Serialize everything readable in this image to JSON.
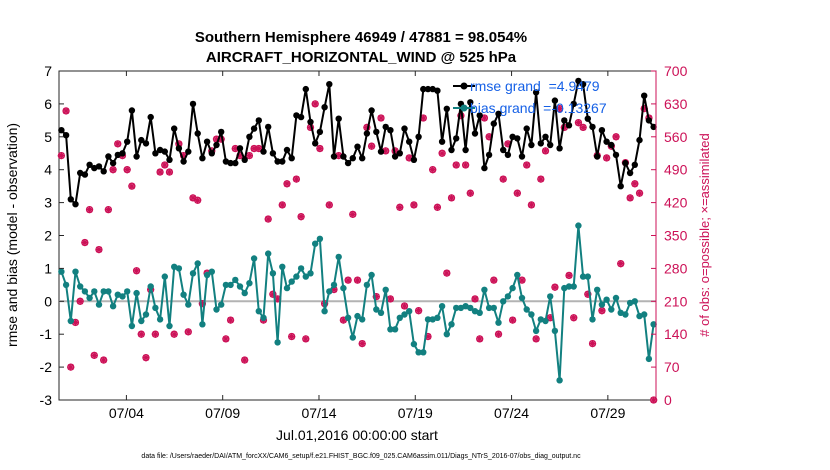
{
  "chart_data": {
    "type": "line",
    "title_line1": "Southern Hemisphere 46949 / 47881 = 98.054%",
    "title_line2": "AIRCRAFT_HORIZONTAL_WIND @ 525 hPa",
    "xlabel": "Jul.01,2016 00:00:00 start",
    "ylabel_left": "rmse and bias (model - observation)",
    "ylabel_right": "# of obs: o=possible; ×=assimilated",
    "footnote": "data file: /Users/raeder/DAI/ATM_forcXX/CAM6_setup/f.e21.FHIST_BGC.f09_025.CAM6assim.011/Diags_NTrS_2016-07/obs_diag_output.nc",
    "x_range_days": [
      0.5,
      31.5
    ],
    "ylim_left": [
      -3,
      7
    ],
    "ylim_right": [
      0,
      700
    ],
    "left_ticks": [
      -3,
      -2,
      -1,
      0,
      1,
      2,
      3,
      4,
      5,
      6,
      7
    ],
    "left_tick_labels": [
      "-3",
      "-2",
      "-1",
      "0",
      "1",
      "2",
      "3",
      "4",
      "5",
      "6",
      "7"
    ],
    "right_ticks": [
      0,
      70,
      140,
      210,
      280,
      350,
      420,
      490,
      560,
      630,
      700
    ],
    "right_tick_labels": [
      "0",
      "70",
      "140",
      "210",
      "280",
      "350",
      "420",
      "490",
      "560",
      "630",
      "700"
    ],
    "x_ticks_days": [
      4,
      9,
      14,
      19,
      24,
      29
    ],
    "x_tick_labels": [
      "07/04",
      "07/09",
      "07/14",
      "07/19",
      "07/24",
      "07/29"
    ],
    "legend": {
      "position": "top-right",
      "rmse_label": "rmse grand  =4.9479",
      "bias_label": "bias grand  =-0.13267"
    },
    "series": [
      {
        "name": "rmse",
        "color": "#000000",
        "values": [
          5.2,
          5.05,
          3.1,
          2.95,
          3.9,
          3.85,
          4.15,
          4.05,
          4.1,
          3.95,
          4.4,
          4.2,
          4.45,
          4.5,
          4.85,
          5.8,
          4.4,
          4.9,
          4.8,
          5.6,
          4.5,
          4.6,
          4.55,
          4.3,
          5.25,
          4.65,
          4.25,
          4.55,
          6.0,
          5.1,
          4.35,
          4.85,
          4.5,
          4.75,
          5.15,
          4.25,
          4.2,
          4.2,
          4.65,
          4.3,
          5.0,
          5.25,
          5.5,
          4.55,
          5.3,
          4.5,
          4.25,
          4.25,
          4.6,
          4.35,
          5.65,
          5.6,
          6.45,
          5.45,
          4.8,
          5.15,
          5.9,
          6.6,
          4.4,
          5.55,
          4.4,
          4.2,
          4.35,
          4.7,
          4.35,
          5.1,
          5.8,
          5.15,
          4.55,
          5.3,
          5.2,
          4.4,
          4.5,
          5.25,
          4.85,
          4.3,
          5.0,
          6.45,
          6.45,
          6.45,
          6.4,
          4.85,
          5.85,
          4.6,
          4.95,
          6.0,
          4.6,
          6.05,
          5.1,
          5.65,
          4.05,
          4.45,
          5.4,
          5.7,
          4.6,
          4.45,
          5.0,
          4.95,
          4.4,
          5.25,
          4.75,
          6.35,
          4.8,
          5.0,
          4.75,
          6.1,
          4.65,
          5.5,
          5.35,
          6.0,
          6.7,
          6.6,
          5.55,
          5.3,
          4.4,
          5.2,
          4.85,
          4.75,
          4.45,
          3.5,
          4.2,
          3.9,
          4.15,
          4.9,
          6.25,
          5.5,
          5.3
        ],
        "legend_label": "rmse grand  =4.9479"
      },
      {
        "name": "bias",
        "color": "#128080",
        "values": [
          0.9,
          0.5,
          -0.6,
          0.9,
          0.45,
          0.3,
          0.1,
          0.3,
          -0.1,
          0.3,
          0.3,
          -0.15,
          0.2,
          0.15,
          0.3,
          -0.75,
          0.25,
          -0.6,
          -0.4,
          0.45,
          -0.2,
          -0.55,
          0.75,
          -0.75,
          1.05,
          1.0,
          0.2,
          -0.1,
          0.85,
          1.15,
          -0.7,
          0.8,
          0.9,
          -0.25,
          -0.1,
          0.5,
          0.5,
          0.65,
          0.45,
          0.25,
          0.55,
          1.3,
          -0.3,
          -0.5,
          1.45,
          0.85,
          -1.25,
          1.05,
          0.4,
          0.6,
          0.75,
          1.0,
          0.75,
          0.85,
          1.75,
          1.9,
          -0.3,
          0.3,
          0.5,
          1.35,
          0.4,
          -0.5,
          -1.1,
          -0.45,
          -0.55,
          0.5,
          0.8,
          -0.25,
          -0.35,
          0.35,
          -0.85,
          -0.85,
          -0.5,
          -0.4,
          -0.3,
          -1.3,
          -1.55,
          -1.55,
          -0.55,
          -0.55,
          -0.5,
          -0.15,
          -1.0,
          -0.7,
          -0.2,
          -0.2,
          -0.15,
          -0.2,
          -0.3,
          -0.35,
          0.35,
          -0.2,
          -0.2,
          -0.65,
          0.0,
          0.15,
          0.4,
          0.8,
          0.1,
          -0.25,
          -0.4,
          -0.9,
          -0.55,
          -0.6,
          0.15,
          -0.9,
          -2.4,
          0.4,
          0.45,
          0.45,
          2.3,
          0.75,
          0.75,
          -0.55,
          0.35,
          -0.1,
          0.05,
          -0.25,
          0.1,
          -0.35,
          -0.4,
          -0.05,
          0.0,
          -0.45,
          -0.4,
          -1.75,
          -0.7
        ],
        "legend_label": "bias grand  =-0.13267"
      }
    ],
    "obs_counts": {
      "color": "#cc1157",
      "note": "paired markers: possible (o) and assimilated (*), right axis",
      "values": [
        520,
        615,
        70,
        165,
        210,
        335,
        405,
        95,
        320,
        85,
        405,
        490,
        545,
        520,
        490,
        455,
        275,
        140,
        90,
        235,
        140,
        485,
        500,
        485,
        140,
        545,
        520,
        145,
        430,
        425,
        205,
        270,
        530,
        555,
        555,
        130,
        170,
        535,
        520,
        85,
        520,
        535,
        535,
        170,
        385,
        225,
        215,
        415,
        460,
        135,
        470,
        390,
        130,
        580,
        630,
        535,
        205,
        415,
        235,
        520,
        170,
        255,
        395,
        255,
        120,
        580,
        540,
        220,
        600,
        530,
        215,
        530,
        410,
        200,
        515,
        415,
        190,
        600,
        135,
        490,
        410,
        525,
        270,
        430,
        500,
        605,
        500,
        440,
        215,
        130,
        600,
        560,
        255,
        140,
        470,
        545,
        170,
        440,
        255,
        500,
        415,
        130,
        470,
        530,
        175,
        240,
        620,
        580,
        265,
        175,
        590,
        580,
        225,
        120,
        520,
        190,
        515,
        540,
        560,
        290,
        505,
        430,
        460,
        440,
        620,
        600,
        0
      ]
    }
  }
}
